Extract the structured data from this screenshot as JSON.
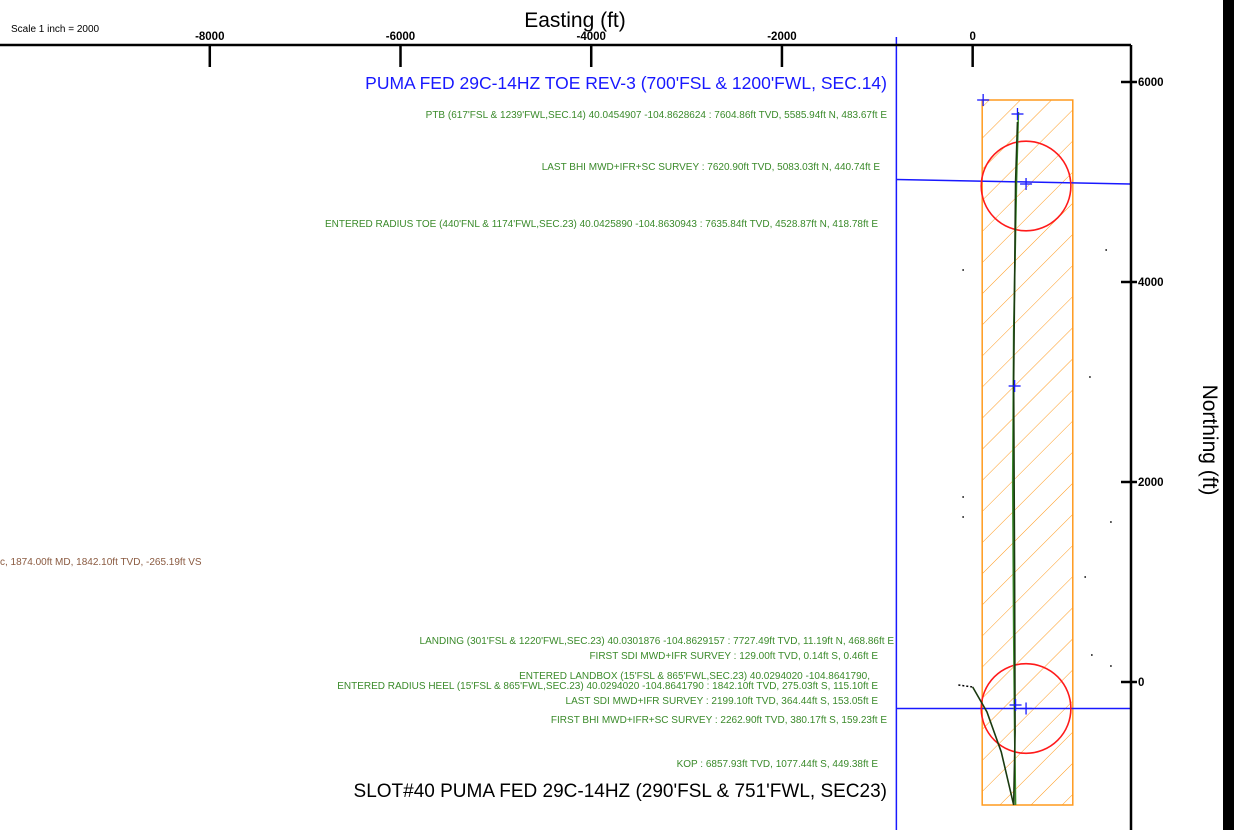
{
  "scale_note": "Scale 1 inch = 2000",
  "chart_data": {
    "type": "scatter",
    "title": "",
    "xlabel": "Easting (ft)",
    "ylabel": "Northing (ft)",
    "x_ticks": [
      -8000,
      -6000,
      -4000,
      -2000,
      0
    ],
    "y_ticks": [
      0,
      2000,
      4000,
      6000
    ],
    "xlim": [
      -10200,
      1650
    ],
    "ylim": [
      -1480,
      6350
    ],
    "colors": {
      "blue": "#1818ff",
      "green": "#3a8a2a",
      "brown": "#8a5a40",
      "orange": "#ff9a1e",
      "red": "#ff1a1a",
      "dark_green": "#1a3a10",
      "black": "#000000"
    },
    "header_labels": [
      {
        "id": "target-title",
        "text": "PUMA FED 29C-14HZ TOE REV-3 (700'FSL & 1200'FWL, SEC.14)",
        "color": "blue"
      },
      {
        "id": "slot-title",
        "text": "SLOT#40 PUMA FED 29C-14HZ (290'FSL & 751'FWL, SEC23)",
        "color": "black"
      }
    ],
    "annotations": [
      {
        "id": "ptb",
        "text": "PTB (617'FSL & 1239'FWL,SEC.14) 40.0454907 -104.8628624 : 7604.86ft TVD, 5585.94ft N, 483.67ft E",
        "color": "green"
      },
      {
        "id": "last-bhi",
        "text": "LAST BHI MWD+IFR+SC SURVEY : 7620.90ft TVD, 5083.03ft N, 440.74ft E",
        "color": "green"
      },
      {
        "id": "entered-radius-toe",
        "text": "ENTERED RADIUS TOE (440'FNL & 1174'FWL,SEC.23) 40.0425890 -104.8630943 : 7635.84ft TVD, 4528.87ft N, 418.78ft E",
        "color": "green"
      },
      {
        "id": "vs-note",
        "text": "c, 1874.00ft MD, 1842.10ft TVD, -265.19ft VS",
        "color": "brown"
      },
      {
        "id": "landing",
        "text": "LANDING (301'FSL & 1220'FWL,SEC.23) 40.0301876 -104.8629157 : 7727.49ft TVD, 11.19ft N, 468.86ft E",
        "color": "green"
      },
      {
        "id": "first-sdi",
        "text": "FIRST SDI MWD+IFR SURVEY : 129.00ft TVD, 0.14ft S, 0.46ft E",
        "color": "green"
      },
      {
        "id": "entered-landbox",
        "text": "ENTERED LANDBOX (15'FSL & 865'FWL,SEC.23) 40.0294020 -104.8641790,",
        "color": "green"
      },
      {
        "id": "entered-radius-heel",
        "text": "ENTERED RADIUS HEEL (15'FSL & 865'FWL,SEC.23) 40.0294020 -104.8641790 : 1842.10ft TVD, 275.03ft S, 115.10ft E",
        "color": "green"
      },
      {
        "id": "last-sdi",
        "text": "LAST SDI MWD+IFR SURVEY : 2199.10ft TVD, 364.44ft S, 153.05ft E",
        "color": "green"
      },
      {
        "id": "first-bhi",
        "text": "FIRST BHI MWD+IFR+SC SURVEY : 2262.90ft TVD, 380.17ft S, 159.23ft E",
        "color": "green"
      },
      {
        "id": "kop",
        "text": "KOP : 6857.93ft TVD, 1077.44ft S, 449.38ft E",
        "color": "green"
      }
    ],
    "reference_lines": {
      "section_line_x": -800,
      "north_line": {
        "x": [
          -800,
          1650
        ],
        "y": [
          5025,
          4980
        ]
      },
      "south_line": {
        "x": [
          -800,
          1650
        ],
        "y": [
          -265,
          -265
        ]
      }
    },
    "target_box": {
      "x": [
        100,
        1050
      ],
      "y": [
        -1230,
        5820
      ]
    },
    "circles": [
      {
        "id": "toe-radius",
        "cx": 560,
        "cy": 4960,
        "r": 470
      },
      {
        "id": "heel-radius",
        "cx": 560,
        "cy": -265,
        "r": 470
      }
    ],
    "planned_path": {
      "x": [
        450,
        440,
        430,
        420,
        430,
        460,
        480
      ],
      "y": [
        -1230,
        -500,
        500,
        2000,
        3500,
        5000,
        5700
      ]
    },
    "actual_path": {
      "x": [
        0,
        150,
        300,
        430,
        445,
        440,
        430,
        450,
        470
      ],
      "y": [
        -50,
        -300,
        -700,
        -1230,
        -500,
        1000,
        3000,
        5000,
        5600
      ]
    },
    "blue_markers": [
      {
        "x": 110,
        "y": 5820
      },
      {
        "x": 470,
        "y": 5680
      },
      {
        "x": 560,
        "y": 4980
      },
      {
        "x": 440,
        "y": 2960
      },
      {
        "x": 450,
        "y": -230
      },
      {
        "x": 560,
        "y": -265
      }
    ],
    "scattered_dots": [
      {
        "x": -100,
        "y": 4120
      },
      {
        "x": 1400,
        "y": 4320
      },
      {
        "x": -100,
        "y": 1850
      },
      {
        "x": -100,
        "y": 1650
      },
      {
        "x": 1180,
        "y": 1050
      },
      {
        "x": 1230,
        "y": 3050
      },
      {
        "x": 1250,
        "y": 270
      },
      {
        "x": 1450,
        "y": 160
      },
      {
        "x": 1450,
        "y": 1600
      }
    ]
  }
}
